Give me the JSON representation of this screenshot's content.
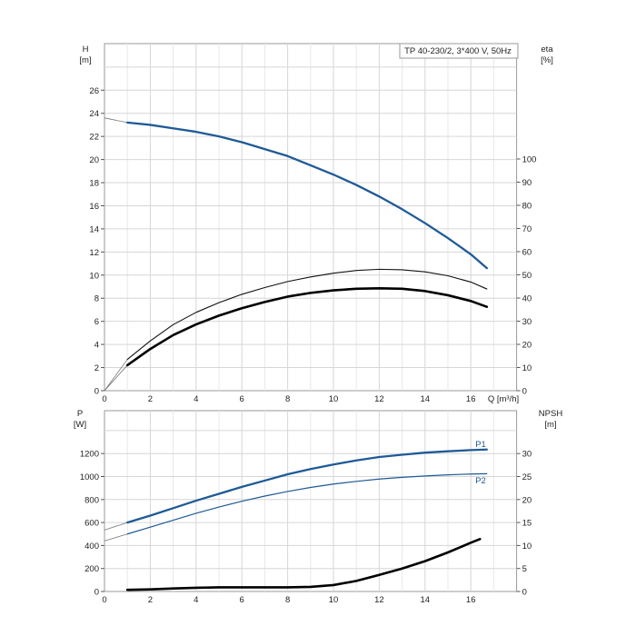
{
  "chart_data": [
    {
      "type": "line",
      "title": "TP 40-230/2, 3*400 V, 50Hz",
      "xlabel": "Q [m³/h]",
      "x_ticks": [
        "0",
        "2",
        "4",
        "6",
        "8",
        "10",
        "12",
        "14",
        "16"
      ],
      "left_axis": {
        "label_line1": "H",
        "label_line2": "[m]",
        "ticks": [
          "0",
          "2",
          "4",
          "6",
          "8",
          "10",
          "12",
          "14",
          "16",
          "18",
          "20",
          "22",
          "24",
          "26"
        ]
      },
      "right_axis": {
        "label_line1": "eta",
        "label_line2": "[%]",
        "ticks": [
          "0",
          "10",
          "20",
          "30",
          "40",
          "50",
          "60",
          "70",
          "80",
          "90",
          "100"
        ]
      },
      "xlim": [
        0,
        18
      ],
      "ylim_left": [
        0,
        28
      ],
      "ylim_right": [
        0,
        110
      ],
      "grid": true,
      "series": [
        {
          "id": "H",
          "axis": "left",
          "color": "#1f5a96",
          "x": [
            1,
            2,
            3,
            4,
            5,
            6,
            7,
            8,
            9,
            10,
            11,
            12,
            13,
            14,
            15,
            16,
            16.7
          ],
          "y": [
            23.2,
            23.0,
            22.7,
            22.4,
            22.0,
            21.5,
            20.9,
            20.3,
            19.5,
            18.7,
            17.8,
            16.8,
            15.7,
            14.5,
            13.2,
            11.8,
            10.6
          ]
        },
        {
          "id": "eta_thin",
          "axis": "right",
          "color": "#111111",
          "x": [
            1,
            2,
            3,
            4,
            5,
            6,
            7,
            8,
            9,
            10,
            11,
            12,
            13,
            14,
            15,
            16,
            16.7
          ],
          "y": [
            13.5,
            21.5,
            28.5,
            33.8,
            38.0,
            41.6,
            44.5,
            47.1,
            49.1,
            50.7,
            51.9,
            52.4,
            52.2,
            51.3,
            49.6,
            46.9,
            43.9
          ]
        },
        {
          "id": "eta_bold",
          "axis": "right",
          "color": "#000000",
          "x": [
            1,
            2,
            3,
            4,
            5,
            6,
            7,
            8,
            9,
            10,
            11,
            12,
            13,
            14,
            15,
            16,
            16.7
          ],
          "y": [
            11.0,
            18.0,
            24.0,
            28.6,
            32.4,
            35.6,
            38.3,
            40.6,
            42.2,
            43.3,
            44.0,
            44.2,
            44.0,
            43.0,
            41.2,
            38.7,
            36.2
          ]
        }
      ]
    },
    {
      "type": "line",
      "x_ticks": [
        "0",
        "2",
        "4",
        "6",
        "8",
        "10",
        "12",
        "14",
        "16"
      ],
      "left_axis": {
        "label_line1": "P",
        "label_line2": "[W]",
        "ticks": [
          "0",
          "200",
          "400",
          "600",
          "800",
          "1000",
          "1200"
        ]
      },
      "right_axis": {
        "label_line1": "NPSH",
        "label_line2": "[m]",
        "ticks": [
          "0",
          "5",
          "10",
          "15",
          "20",
          "25",
          "30"
        ]
      },
      "xlim": [
        0,
        18
      ],
      "ylim_left": [
        0,
        1400
      ],
      "ylim_right": [
        0,
        35
      ],
      "grid": true,
      "series": [
        {
          "id": "P1",
          "name": "P1",
          "axis": "left",
          "color": "#1f5a96",
          "x": [
            1,
            2,
            3,
            4,
            5,
            6,
            7,
            8,
            9,
            10,
            11,
            12,
            13,
            14,
            15,
            16,
            16.7
          ],
          "y": [
            600,
            660,
            725,
            790,
            850,
            910,
            965,
            1020,
            1065,
            1105,
            1140,
            1170,
            1190,
            1208,
            1220,
            1230,
            1235
          ]
        },
        {
          "id": "P2",
          "name": "P2",
          "axis": "left",
          "color": "#1f5a96",
          "x": [
            1,
            2,
            3,
            4,
            5,
            6,
            7,
            8,
            9,
            10,
            11,
            12,
            13,
            14,
            15,
            16,
            16.7
          ],
          "y": [
            500,
            560,
            620,
            680,
            735,
            785,
            830,
            870,
            905,
            935,
            958,
            978,
            993,
            1005,
            1015,
            1022,
            1025
          ]
        },
        {
          "id": "NPSH",
          "axis": "right",
          "color": "#000000",
          "x": [
            1,
            2,
            3,
            4,
            5,
            6,
            7,
            8,
            9,
            10,
            11,
            12,
            13,
            14,
            15,
            16,
            16.4
          ],
          "y": [
            0.35,
            0.45,
            0.65,
            0.8,
            0.9,
            0.9,
            0.9,
            0.9,
            1.0,
            1.4,
            2.3,
            3.6,
            5.0,
            6.6,
            8.5,
            10.6,
            11.4
          ]
        }
      ]
    }
  ]
}
